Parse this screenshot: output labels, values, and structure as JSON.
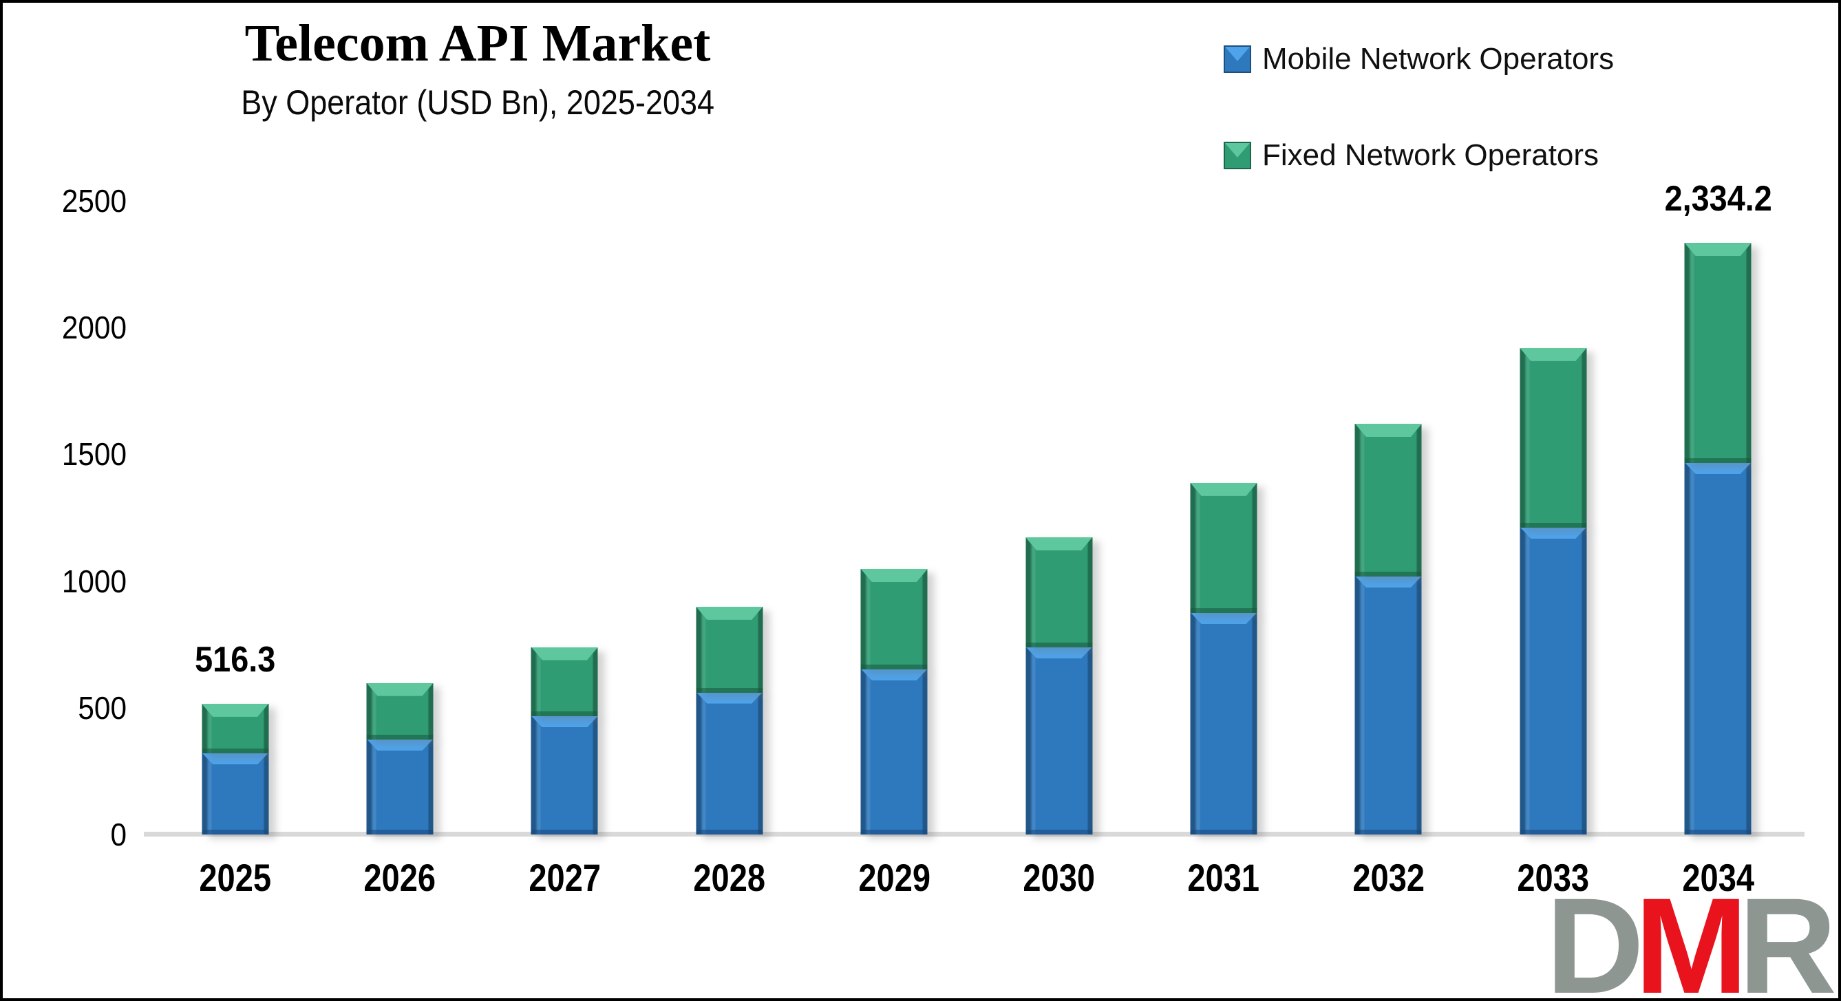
{
  "meta": {
    "title": "Telecom API Market",
    "subtitle": "By Operator (USD Bn), 2025-2034"
  },
  "legend": [
    {
      "label": "Mobile Network Operators",
      "color": "#2E79BE",
      "light": "#4FA3EA"
    },
    {
      "label": "Fixed Network Operators",
      "color": "#2F9C73",
      "light": "#5FC79D"
    }
  ],
  "colors": {
    "mobile_blue": "#2E79BE",
    "fixed_green": "#2F9C73",
    "baseline_gray": "#D9D9D9",
    "text_black": "#000000",
    "logo_red": "#E8131D",
    "logo_gray": "#8E9692"
  },
  "y_axis": {
    "ticks": [
      "0",
      "500",
      "1000",
      "1500",
      "2000",
      "2500"
    ],
    "min": 0,
    "max": 2500,
    "step": 500
  },
  "chart_data": {
    "type": "bar",
    "stacked": true,
    "title": "Telecom API Market",
    "subtitle": "By Operator (USD Bn), 2025-2034",
    "unit": "USD Bn",
    "xlabel": "",
    "ylabel": "",
    "ylim": [
      0,
      2500
    ],
    "grid": false,
    "legend_position": "top-right",
    "categories": [
      "2025",
      "2026",
      "2027",
      "2028",
      "2029",
      "2030",
      "2031",
      "2032",
      "2033",
      "2034"
    ],
    "series": [
      {
        "name": "Mobile Network Operators",
        "color": "#2E79BE",
        "values": [
          323.2,
          377.5,
          468.3,
          563.1,
          654.2,
          741.2,
          876.9,
          1020.8,
          1213.5,
          1468.5
        ]
      },
      {
        "name": "Fixed Network Operators",
        "color": "#2F9C73",
        "values": [
          193.1,
          220.9,
          271.4,
          335.9,
          393.6,
          431.6,
          510.5,
          599.7,
          706.1,
          865.7
        ]
      }
    ],
    "totals": [
      516.3,
      598.4,
      739.7,
      899.0,
      1047.8,
      1172.8,
      1387.4,
      1620.5,
      1919.6,
      2334.2
    ],
    "data_labels": {
      "2025": "516.3",
      "2034": "2,334.2"
    }
  },
  "logo": {
    "letters": [
      {
        "char": "D",
        "color": "#8E9692"
      },
      {
        "char": "M",
        "color": "#E8131D"
      },
      {
        "char": "R",
        "color": "#8E9692"
      }
    ]
  }
}
